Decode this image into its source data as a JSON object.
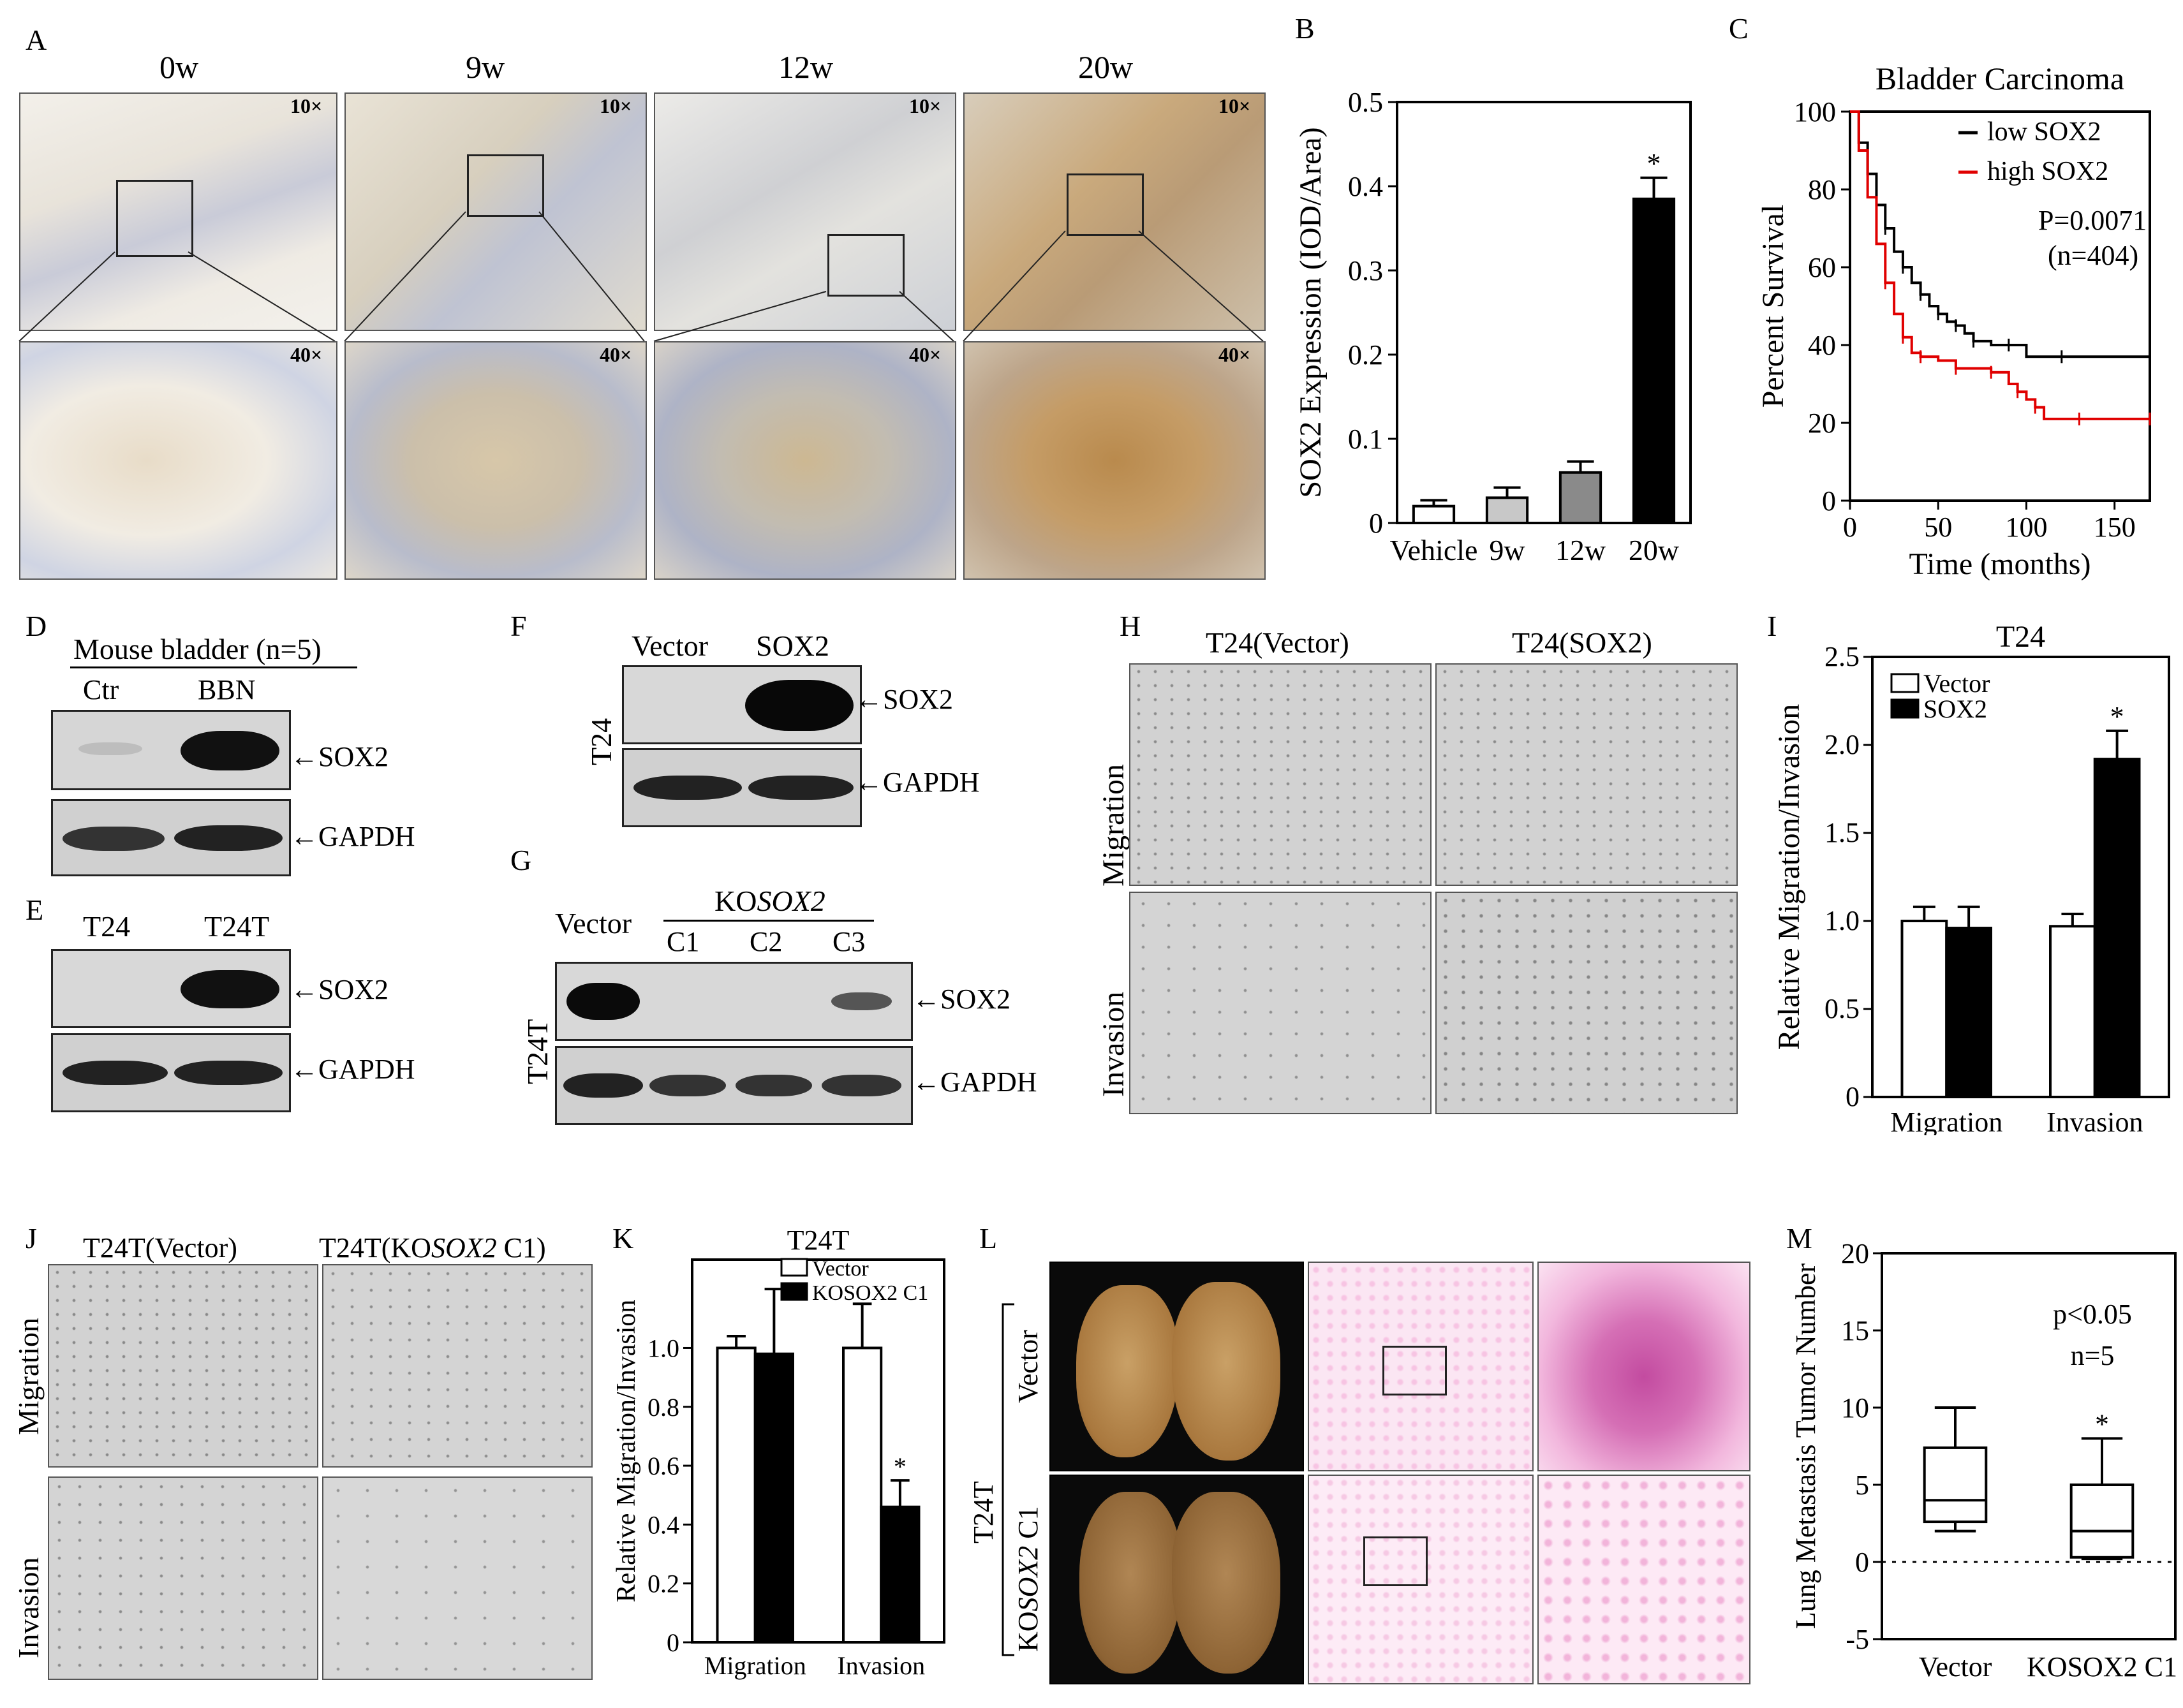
{
  "panels": {
    "A": {
      "letter": "A",
      "timepoints": [
        "0w",
        "9w",
        "12w",
        "20w"
      ],
      "mag_low": "10×",
      "mag_high": "40×"
    },
    "D": {
      "letter": "D",
      "group_label": "Mouse bladder (n=5)",
      "lanes": [
        "Ctr",
        "BBN"
      ],
      "targets": [
        "SOX2",
        "GAPDH"
      ]
    },
    "E": {
      "letter": "E",
      "lanes": [
        "T24",
        "T24T"
      ],
      "targets": [
        "SOX2",
        "GAPDH"
      ]
    },
    "F": {
      "letter": "F",
      "lanes": [
        "Vector",
        "SOX2"
      ],
      "cell_line": "T24",
      "targets": [
        "SOX2",
        "GAPDH"
      ]
    },
    "G": {
      "letter": "G",
      "vector": "Vector",
      "ko_prefix": "KO",
      "ko_gene": "SOX2",
      "clones": [
        "C1",
        "C2",
        "C3"
      ],
      "cell_line": "T24T",
      "targets": [
        "SOX2",
        "GAPDH"
      ]
    },
    "H": {
      "letter": "H",
      "columns": [
        "T24(Vector)",
        "T24(SOX2)"
      ],
      "rows": [
        "Migration",
        "Invasion"
      ]
    },
    "J": {
      "letter": "J",
      "col1": "T24T(Vector)",
      "col2_prefix": "T24T(KO",
      "col2_gene": "SOX2",
      "col2_suffix": " C1)",
      "rows": [
        "Migration",
        "Invasion"
      ]
    },
    "L": {
      "letter": "L",
      "cell_line": "T24T",
      "row1": "Vector",
      "row2_prefix": "KO",
      "row2_gene": "SOX2",
      "row2_suffix": " C1"
    }
  },
  "chart_data": [
    {
      "panel": "B",
      "type": "bar",
      "categories": [
        "Vehicle",
        "9w",
        "12w",
        "20w"
      ],
      "values": [
        0.02,
        0.03,
        0.06,
        0.385
      ],
      "errors": [
        0.007,
        0.012,
        0.013,
        0.025
      ],
      "colors": [
        "#ffffff",
        "#c8c8c8",
        "#8a8a8a",
        "#000000"
      ],
      "significance": [
        "",
        "",
        "",
        "*"
      ],
      "ylabel": "SOX2 Expression (IOD/Area)",
      "ylim": [
        0,
        0.5
      ],
      "yticks": [
        "0",
        "0.1",
        "0.2",
        "0.3",
        "0.4",
        "0.5"
      ]
    },
    {
      "panel": "C",
      "type": "line",
      "title": "Bladder Carcinoma",
      "xlabel": "Time (months)",
      "ylabel": "Percent  Survival",
      "xlim": [
        0,
        170
      ],
      "ylim": [
        0,
        100
      ],
      "xticks": [
        "0",
        "50",
        "100",
        "150"
      ],
      "yticks": [
        "0",
        "20",
        "40",
        "60",
        "80",
        "100"
      ],
      "legend_position": "top-right",
      "stats": [
        "P=0.0071",
        "(n=404)"
      ],
      "series": [
        {
          "name": "low SOX2",
          "color": "#000000",
          "x": [
            0,
            5,
            10,
            15,
            20,
            25,
            30,
            35,
            40,
            45,
            50,
            55,
            60,
            65,
            70,
            80,
            90,
            100,
            120,
            150,
            170
          ],
          "y": [
            100,
            92,
            84,
            76,
            70,
            64,
            60,
            56,
            53,
            50,
            48,
            46,
            45,
            43,
            41,
            40,
            40,
            37,
            37,
            37,
            37
          ]
        },
        {
          "name": "high SOX2",
          "color": "#e00000",
          "x": [
            0,
            5,
            10,
            15,
            20,
            25,
            30,
            35,
            40,
            50,
            60,
            70,
            80,
            90,
            95,
            100,
            105,
            110,
            130,
            150,
            170
          ],
          "y": [
            100,
            90,
            78,
            66,
            56,
            48,
            42,
            38,
            37,
            36,
            34,
            34,
            33,
            30,
            28,
            26,
            24,
            21,
            21,
            21,
            21
          ]
        }
      ]
    },
    {
      "panel": "I",
      "type": "bar",
      "title": "T24",
      "categories": [
        "Migration",
        "Invasion"
      ],
      "series": [
        {
          "name": "Vector",
          "values": [
            1.0,
            0.97
          ],
          "errors": [
            0.08,
            0.07
          ],
          "color": "#ffffff"
        },
        {
          "name": "SOX2",
          "values": [
            0.96,
            1.92
          ],
          "errors": [
            0.12,
            0.16
          ],
          "color": "#000000"
        }
      ],
      "significance": [
        [
          "",
          ""
        ],
        [
          "",
          "*"
        ]
      ],
      "ylabel": "Relative Migration/Invasion",
      "ylim": [
        0,
        2.5
      ],
      "yticks": [
        "0",
        "0.5",
        "1.0",
        "1.5",
        "2.0",
        "2.5"
      ],
      "legend_position": "top-left"
    },
    {
      "panel": "K",
      "type": "bar",
      "title": "T24T",
      "categories": [
        "Migration",
        "Invasion"
      ],
      "series": [
        {
          "name": "Vector",
          "values": [
            1.0,
            1.0
          ],
          "errors": [
            0.04,
            0.15
          ],
          "color": "#ffffff"
        },
        {
          "name": "KOSOX2 C1",
          "values": [
            0.98,
            0.46
          ],
          "errors": [
            0.22,
            0.09
          ],
          "color": "#000000"
        }
      ],
      "significance": [
        [
          "",
          ""
        ],
        [
          "",
          "*"
        ]
      ],
      "ylabel": "Relative Migration/Invasion",
      "ylim": [
        0,
        1.3
      ],
      "yticks": [
        "0",
        "0.2",
        "0.4",
        "0.6",
        "0.8",
        "1.0"
      ],
      "legend_position": "top-right"
    },
    {
      "panel": "M",
      "type": "box",
      "categories": [
        "Vector",
        "KOSOX2 C1"
      ],
      "boxes": [
        {
          "min": 2,
          "q1": 2.6,
          "median": 4,
          "q3": 7.4,
          "max": 10
        },
        {
          "min": 0.2,
          "q1": 0.3,
          "median": 2,
          "q3": 5,
          "max": 8
        }
      ],
      "significance": [
        "",
        "*"
      ],
      "stats": [
        "p<0.05",
        "n=5"
      ],
      "ylabel": "Lung Metastasis Tumor Number",
      "ylim": [
        -5,
        20
      ],
      "yticks": [
        "-5",
        "0",
        "5",
        "10",
        "15",
        "20"
      ]
    }
  ]
}
